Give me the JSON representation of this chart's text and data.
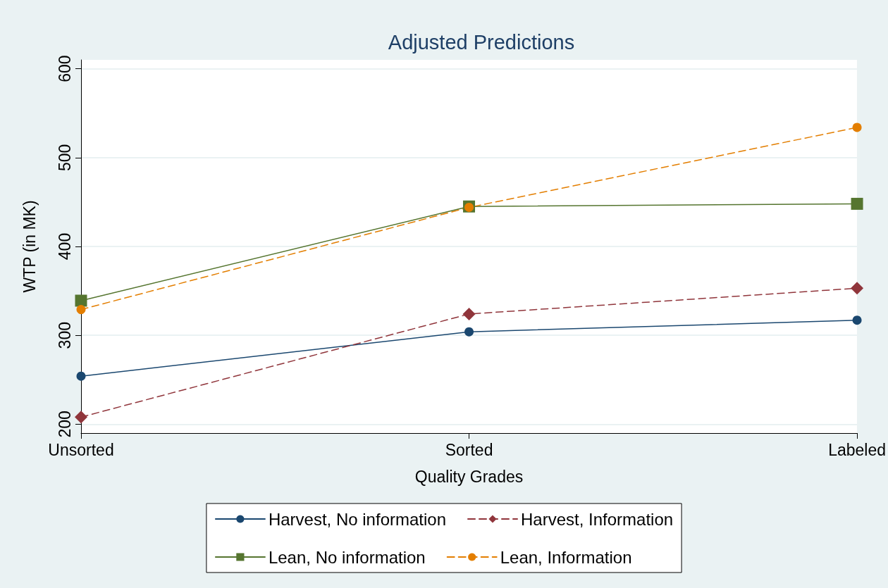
{
  "chart_data": {
    "type": "line",
    "title": "Adjusted Predictions",
    "xlabel": "Quality Grades",
    "ylabel": "WTP (in MK)",
    "categories": [
      "Unsorted",
      "Sorted",
      "Labeled"
    ],
    "series": [
      {
        "name": "Harvest, No information",
        "color": "#1a476f",
        "marker": "circle",
        "line_style": "solid",
        "values": [
          254,
          304,
          317
        ]
      },
      {
        "name": "Harvest, Information",
        "color": "#90353b",
        "marker": "diamond",
        "line_style": "dashed",
        "values": [
          208,
          324,
          353
        ]
      },
      {
        "name": "Lean, No information",
        "color": "#55752f",
        "marker": "square",
        "line_style": "solid",
        "values": [
          339,
          445,
          448
        ]
      },
      {
        "name": "Lean, Information",
        "color": "#e37e00",
        "marker": "circle",
        "line_style": "dashed",
        "values": [
          329,
          444,
          534
        ]
      }
    ],
    "ylim": [
      190,
      610
    ],
    "yticks": [
      200,
      300,
      400,
      500,
      600
    ],
    "grid": "y",
    "legend": "bottom"
  }
}
